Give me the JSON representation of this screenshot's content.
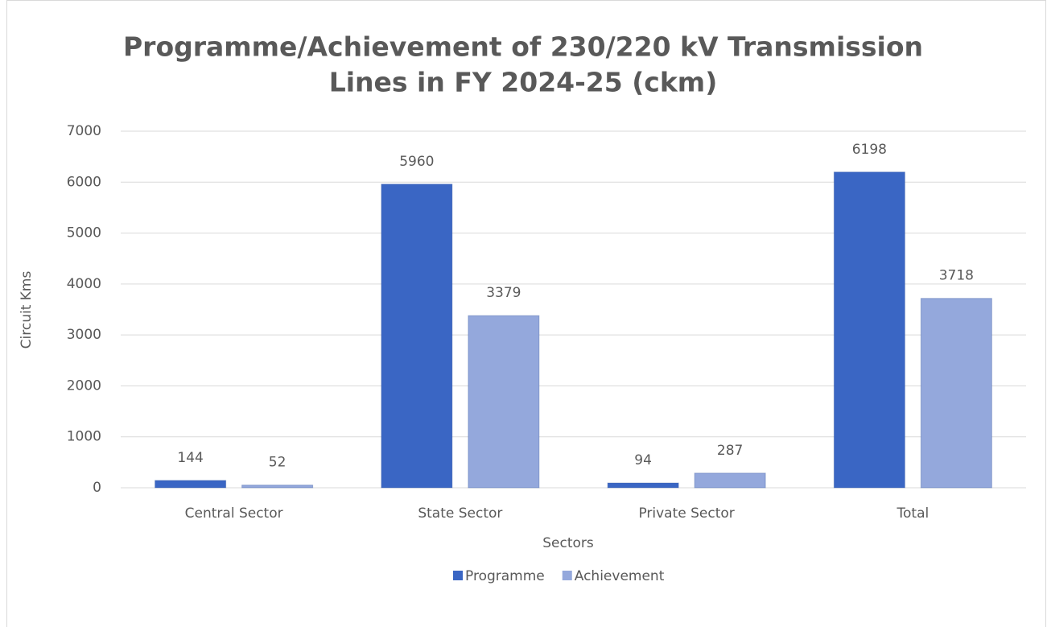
{
  "chart_data": {
    "type": "bar",
    "title": [
      "Programme/Achievement of 230/220 kV Transmission",
      "Lines in FY 2024-25 (ckm)"
    ],
    "x_label": "Sectors",
    "y_label": "Circuit Kms",
    "categories": [
      "Central Sector",
      "State Sector",
      "Private Sector",
      "Total"
    ],
    "series": [
      {
        "name": "Programme",
        "color": "#3a66c4",
        "values": [
          144,
          5960,
          94,
          6198
        ]
      },
      {
        "name": "Achievement",
        "color": "#94a8dc",
        "values": [
          52,
          3379,
          287,
          3718
        ]
      }
    ],
    "ylim": [
      0,
      7000
    ],
    "yticks": [
      0,
      1000,
      2000,
      3000,
      4000,
      5000,
      6000,
      7000
    ],
    "grid": true,
    "legend": "bottom"
  }
}
